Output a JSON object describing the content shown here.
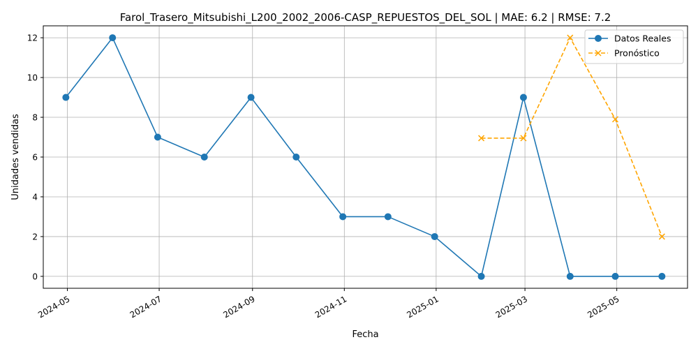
{
  "chart_data": {
    "type": "line",
    "title": "Farol_Trasero_Mitsubishi_L200_2002_2006-CASP_REPUESTOS_DEL_SOL | MAE: 6.2 | RMSE: 7.2",
    "xlabel": "Fecha",
    "ylabel": "Unidades vendidas",
    "x_ticks": [
      {
        "label": "2024-05",
        "date": "2024-05-01"
      },
      {
        "label": "2024-07",
        "date": "2024-07-01"
      },
      {
        "label": "2024-09",
        "date": "2024-09-01"
      },
      {
        "label": "2024-11",
        "date": "2024-11-01"
      },
      {
        "label": "2025-01",
        "date": "2025-01-01"
      },
      {
        "label": "2025-03",
        "date": "2025-03-01"
      },
      {
        "label": "2025-05",
        "date": "2025-05-01"
      }
    ],
    "xlim": [
      "2024-04-15",
      "2025-06-17"
    ],
    "ylim": [
      -0.6,
      12.6
    ],
    "y_ticks": [
      0,
      2,
      4,
      6,
      8,
      10,
      12
    ],
    "grid": true,
    "legend_position": "top-right",
    "series": [
      {
        "name": "Datos Reales",
        "color": "#1f77b4",
        "style": "solid",
        "marker": "circle",
        "points": [
          {
            "date": "2024-04-30",
            "value": 9
          },
          {
            "date": "2024-05-31",
            "value": 12
          },
          {
            "date": "2024-06-30",
            "value": 7
          },
          {
            "date": "2024-07-31",
            "value": 6
          },
          {
            "date": "2024-08-31",
            "value": 9
          },
          {
            "date": "2024-09-30",
            "value": 6
          },
          {
            "date": "2024-10-31",
            "value": 3
          },
          {
            "date": "2024-11-30",
            "value": 3
          },
          {
            "date": "2024-12-31",
            "value": 2
          },
          {
            "date": "2025-01-31",
            "value": 0
          },
          {
            "date": "2025-02-28",
            "value": 9
          },
          {
            "date": "2025-03-31",
            "value": 0
          },
          {
            "date": "2025-04-30",
            "value": 0
          },
          {
            "date": "2025-05-31",
            "value": 0
          }
        ]
      },
      {
        "name": "Pronóstico",
        "color": "#ffa500",
        "style": "dashed",
        "marker": "x",
        "points": [
          {
            "date": "2025-01-31",
            "value": 6.95
          },
          {
            "date": "2025-02-28",
            "value": 6.95
          },
          {
            "date": "2025-03-31",
            "value": 12
          },
          {
            "date": "2025-04-30",
            "value": 7.9
          },
          {
            "date": "2025-05-31",
            "value": 2
          }
        ]
      }
    ]
  }
}
